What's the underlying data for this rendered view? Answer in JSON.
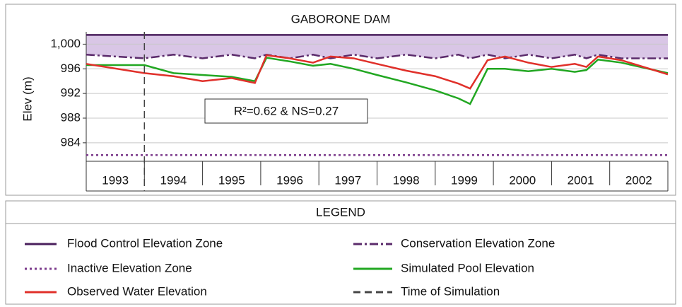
{
  "chart_data": {
    "type": "line",
    "title": "GABORONE DAM",
    "ylabel": "Elev (m)",
    "ylim": [
      981,
      1002
    ],
    "yticks": [
      {
        "value": 1000,
        "label": "1,000"
      },
      996,
      992,
      988,
      984
    ],
    "grid": true,
    "xlim": [
      1993,
      2003
    ],
    "categories": [
      "1993",
      "1994",
      "1995",
      "1996",
      "1997",
      "1998",
      "1999",
      "2000",
      "2001",
      "2002"
    ],
    "x": [
      1993.0,
      1994.0,
      1994.5,
      1995.0,
      1995.5,
      1995.9,
      1996.1,
      1996.5,
      1996.9,
      1997.2,
      1997.6,
      1998.0,
      1998.5,
      1999.0,
      1999.4,
      1999.6,
      1999.9,
      2000.2,
      2000.6,
      2001.0,
      2001.4,
      2001.6,
      2001.8,
      2002.2,
      2003.0
    ],
    "series": [
      {
        "name": "Flood Control Elevation Zone",
        "color": "#4a1f5c",
        "style": "solid",
        "values": [
          1001.5,
          1001.5,
          1001.5,
          1001.5,
          1001.5,
          1001.5,
          1001.5,
          1001.5,
          1001.5,
          1001.5,
          1001.5,
          1001.5,
          1001.5,
          1001.5,
          1001.5,
          1001.5,
          1001.5,
          1001.5,
          1001.5,
          1001.5,
          1001.5,
          1001.5,
          1001.5,
          1001.5,
          1001.5
        ]
      },
      {
        "name": "Conservation Elevation Zone",
        "color": "#5b2b6b",
        "style": "dashdot",
        "values": [
          998.3,
          997.7,
          998.3,
          997.7,
          998.3,
          997.7,
          998.3,
          997.7,
          998.3,
          997.7,
          998.3,
          997.7,
          998.3,
          997.7,
          998.3,
          997.7,
          998.3,
          997.7,
          998.3,
          997.7,
          998.3,
          997.7,
          998.3,
          997.7,
          997.7
        ]
      },
      {
        "name": "Inactive Elevation Zone",
        "color": "#7b3a8b",
        "style": "dotted",
        "values": [
          982,
          982,
          982,
          982,
          982,
          982,
          982,
          982,
          982,
          982,
          982,
          982,
          982,
          982,
          982,
          982,
          982,
          982,
          982,
          982,
          982,
          982,
          982,
          982,
          982
        ]
      },
      {
        "name": "Simulated Pool Elevation",
        "color": "#22a722",
        "style": "solid",
        "values": [
          996.6,
          996.6,
          995.3,
          995.0,
          994.7,
          994.0,
          997.8,
          997.2,
          996.5,
          996.8,
          996.0,
          995.0,
          993.8,
          992.5,
          991.2,
          990.3,
          996.0,
          996.0,
          995.6,
          996.0,
          995.5,
          995.8,
          997.5,
          997.0,
          995.3
        ]
      },
      {
        "name": "Observed Water Elevation",
        "color": "#e0302a",
        "style": "solid",
        "values": [
          996.8,
          995.3,
          994.8,
          994.0,
          994.5,
          993.7,
          998.2,
          997.7,
          997.0,
          998.0,
          997.7,
          996.8,
          995.7,
          994.8,
          993.6,
          992.8,
          997.4,
          998.0,
          997.0,
          996.3,
          996.8,
          996.3,
          998.0,
          997.4,
          995.1
        ]
      }
    ],
    "markers": [
      {
        "name": "Time of Simulation",
        "x": 1994,
        "color": "#444"
      }
    ],
    "annotation": "R²=0.62 & NS=0.27",
    "legend_title": "LEGEND"
  }
}
